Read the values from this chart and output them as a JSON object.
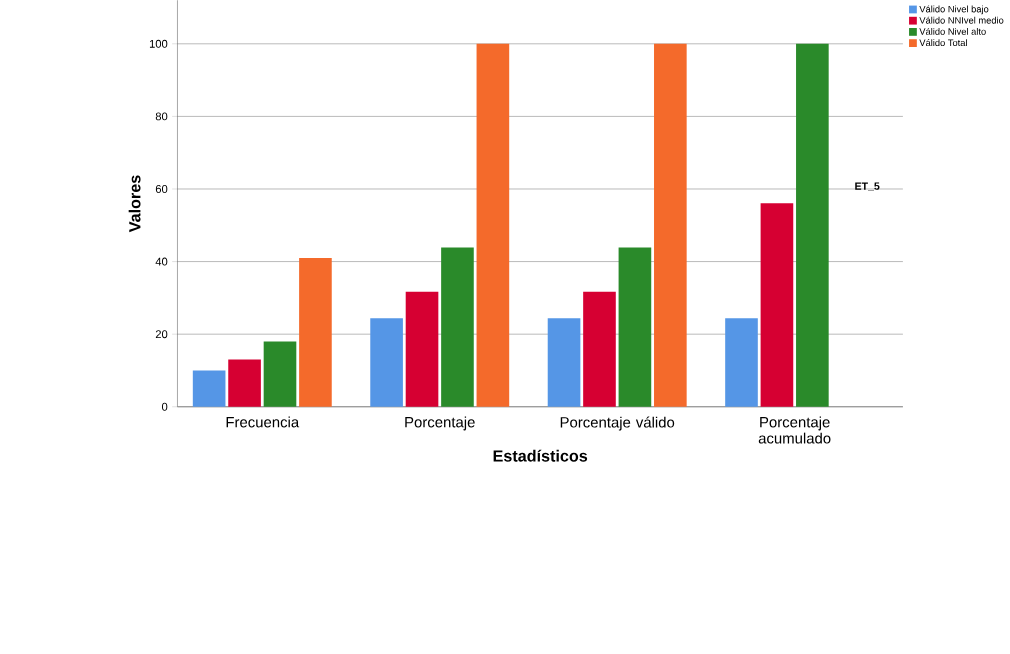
{
  "chart_data": {
    "type": "bar",
    "xlabel": "Estadísticos",
    "ylabel": "Valores",
    "legend_title": "ET_5",
    "categories": [
      "Frecuencia",
      "Porcentaje",
      "Porcentaje válido",
      "Porcentaje acumulado"
    ],
    "series": [
      {
        "name": "Válido Nivel bajo",
        "color": "#5596e6",
        "values": [
          10,
          24.4,
          24.4,
          24.4
        ]
      },
      {
        "name": "Válido NNIvel medio",
        "color": "#d60032",
        "values": [
          13,
          31.7,
          31.7,
          56.1
        ]
      },
      {
        "name": "Válido Nivel alto",
        "color": "#2a8a2a",
        "values": [
          18,
          43.9,
          43.9,
          100
        ]
      },
      {
        "name": "Válido Total",
        "color": "#f46a2b",
        "values": [
          41,
          100,
          100,
          null
        ]
      }
    ],
    "ylim": [
      0,
      112
    ],
    "yticks": [
      0,
      20,
      40,
      60,
      80,
      100
    ],
    "grid": "y",
    "legend": "top right"
  }
}
